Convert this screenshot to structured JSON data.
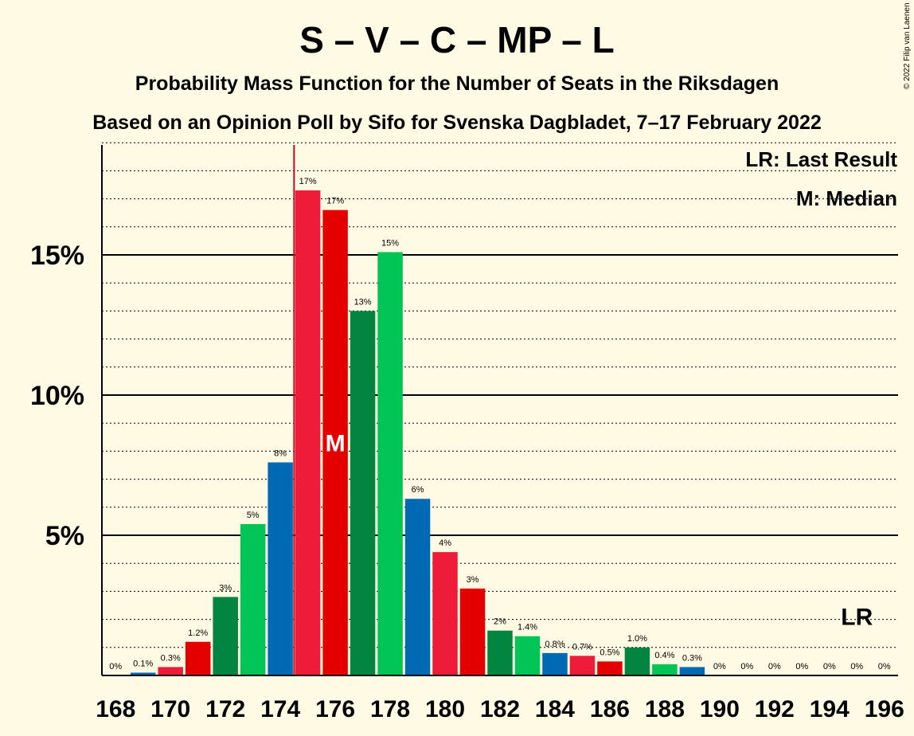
{
  "title": "S – V – C – MP – L",
  "subtitle": "Probability Mass Function for the Number of Seats in the Riksdagen",
  "subtitle2": "Based on an Opinion Poll by Sifo for Svenska Dagbladet, 7–17 February 2022",
  "copyright": "© 2022 Filip van Laenen",
  "legend": {
    "last_result": "LR: Last Result",
    "median": "M: Median"
  },
  "median_marker": "M",
  "last_result_marker": "LR",
  "chart_data": {
    "type": "bar",
    "title": "S – V – C – MP – L",
    "subtitle": "Probability Mass Function for the Number of Seats in the Riksdagen",
    "ylim": [
      0,
      19
    ],
    "yticks": [
      {
        "value": 5,
        "label": "5%"
      },
      {
        "value": 10,
        "label": "10%"
      },
      {
        "value": 15,
        "label": "15%"
      }
    ],
    "xticks": [
      "168",
      "170",
      "172",
      "174",
      "176",
      "178",
      "180",
      "182",
      "184",
      "186",
      "188",
      "190",
      "192",
      "194",
      "196"
    ],
    "last_result_seat": 175,
    "median_seat": 176,
    "lr_label_seat": 195,
    "categories": [
      168,
      169,
      170,
      171,
      172,
      173,
      174,
      175,
      176,
      177,
      178,
      179,
      180,
      181,
      182,
      183,
      184,
      185,
      186,
      187,
      188,
      189,
      190,
      191,
      192,
      193,
      194,
      195,
      196
    ],
    "values": [
      0,
      0.1,
      0.3,
      1.2,
      2.8,
      5.4,
      7.6,
      17.3,
      16.6,
      13.0,
      15.1,
      6.3,
      4.4,
      3.1,
      1.6,
      1.4,
      0.8,
      0.7,
      0.5,
      1.0,
      0.4,
      0.3,
      0,
      0,
      0,
      0,
      0,
      0,
      0
    ],
    "labels": [
      "0%",
      "0.1%",
      "0.3%",
      "1.2%",
      "3%",
      "5%",
      "8%",
      "17%",
      "17%",
      "13%",
      "15%",
      "6%",
      "4%",
      "3%",
      "2%",
      "1.4%",
      "0.8%",
      "0.7%",
      "0.5%",
      "1.0%",
      "0.4%",
      "0.3%",
      "0%",
      "0%",
      "0%",
      "0%",
      "0%",
      "0%",
      "0%"
    ],
    "colors": [
      "#EE1C39",
      "#0069B4",
      "#EE1C39",
      "#E50000",
      "#00843E",
      "#00C456",
      "#0069B4",
      "#EE1C39",
      "#E50000",
      "#00843E",
      "#00C456",
      "#0069B4",
      "#EE1C39",
      "#E50000",
      "#00843E",
      "#00C456",
      "#0069B4",
      "#EE1C39",
      "#E50000",
      "#00843E",
      "#00C456",
      "#0069B4",
      "#EE1C39",
      "#E50000",
      "#00843E",
      "#00C456",
      "#0069B4",
      "#EE1C39",
      "#E50000"
    ],
    "last_result_color": "#D0021B"
  }
}
